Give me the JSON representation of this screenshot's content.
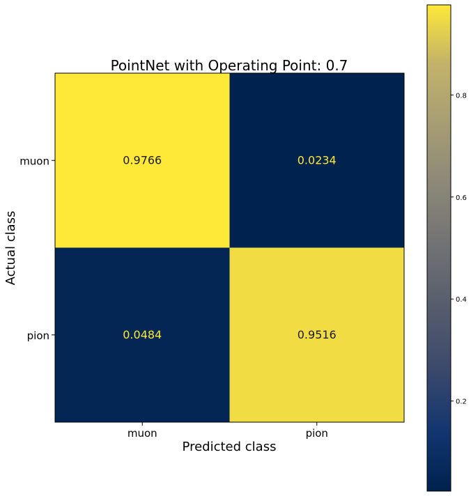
{
  "chart_data": {
    "type": "heatmap",
    "title": "PointNet with Operating Point: 0.7",
    "xlabel": "Predicted class",
    "ylabel": "Actual class",
    "x_categories": [
      "muon",
      "pion"
    ],
    "y_categories": [
      "muon",
      "pion"
    ],
    "values": [
      [
        0.9766,
        0.0234
      ],
      [
        0.0484,
        0.9516
      ]
    ],
    "value_labels": [
      [
        "0.9766",
        "0.0234"
      ],
      [
        "0.0484",
        "0.9516"
      ]
    ],
    "colormap": "cividis",
    "colorbar": {
      "range": [
        0.0234,
        0.9766
      ],
      "ticks": [
        0.2,
        0.4,
        0.6,
        0.8
      ],
      "tick_labels": [
        "0.2",
        "0.4",
        "0.6",
        "0.8"
      ]
    },
    "colors": {
      "low": "#00224e",
      "mid": "#7c7b78",
      "high": "#fee838",
      "text_on_low": "#fee838",
      "text_on_high": "#1a1a1a"
    }
  }
}
